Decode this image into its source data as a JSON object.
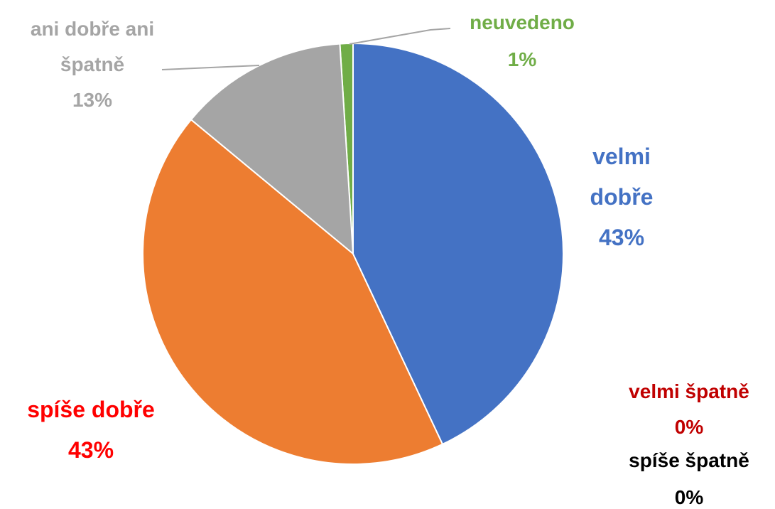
{
  "chart_data": {
    "type": "pie",
    "categories": [
      "velmi dobře",
      "velmi špatně",
      "spíše špatně",
      "spíše dobře",
      "ani dobře ani špatně",
      "neuvedeno"
    ],
    "values": [
      43,
      0,
      0,
      43,
      13,
      1
    ],
    "value_labels": [
      "43%",
      "0%",
      "0%",
      "43%",
      "13%",
      "1%"
    ],
    "colors": [
      "#4472c4",
      "#a5a5a5",
      "#000000",
      "#ed7d31",
      "#a5a5a5",
      "#70ad47"
    ],
    "label_colors": [
      "#4472c4",
      "#c00000",
      "#000000",
      "#ff0000",
      "#a5a5a5",
      "#70ad47"
    ]
  }
}
